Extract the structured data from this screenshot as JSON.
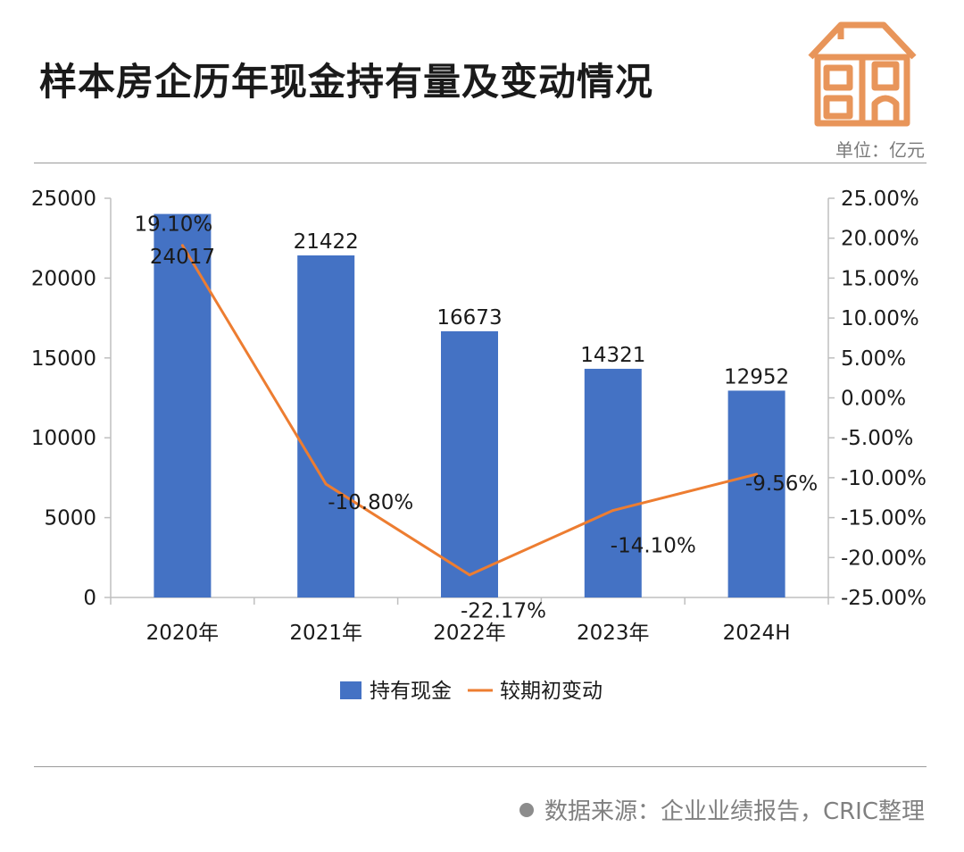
{
  "title": "样本房企历年现金持有量及变动情况",
  "unit": "单位：亿元",
  "source": "数据来源：企业业绩报告，CRIC整理",
  "colors": {
    "bar": "#4472C4",
    "line": "#ED7D31",
    "text": "#1a1a1a",
    "logo": "#E8955A"
  },
  "chart_data": {
    "type": "bar",
    "categories": [
      "2020年",
      "2021年",
      "2022年",
      "2023年",
      "2024H"
    ],
    "series": [
      {
        "name": "持有现金",
        "type": "bar",
        "axis": "left",
        "values": [
          24017,
          21422,
          16673,
          14321,
          12952
        ],
        "labels": [
          "24017",
          "21422",
          "16673",
          "14321",
          "12952"
        ]
      },
      {
        "name": "较期初变动",
        "type": "line",
        "axis": "right",
        "values": [
          19.1,
          -10.8,
          -22.17,
          -14.1,
          -9.56
        ],
        "labels": [
          "19.10%",
          "-10.80%",
          "-22.17%",
          "-14.10%",
          "-9.56%"
        ]
      }
    ],
    "left_axis": {
      "ylim": [
        0,
        25000
      ],
      "ticks": [
        "0",
        "5000",
        "10000",
        "15000",
        "20000",
        "25000"
      ]
    },
    "right_axis": {
      "ylim": [
        -25,
        25
      ],
      "ticks": [
        "-25.00%",
        "-20.00%",
        "-15.00%",
        "-10.00%",
        "-5.00%",
        "0.00%",
        "5.00%",
        "10.00%",
        "15.00%",
        "20.00%",
        "25.00%"
      ]
    },
    "legend_position": "bottom-center",
    "grid": false
  }
}
